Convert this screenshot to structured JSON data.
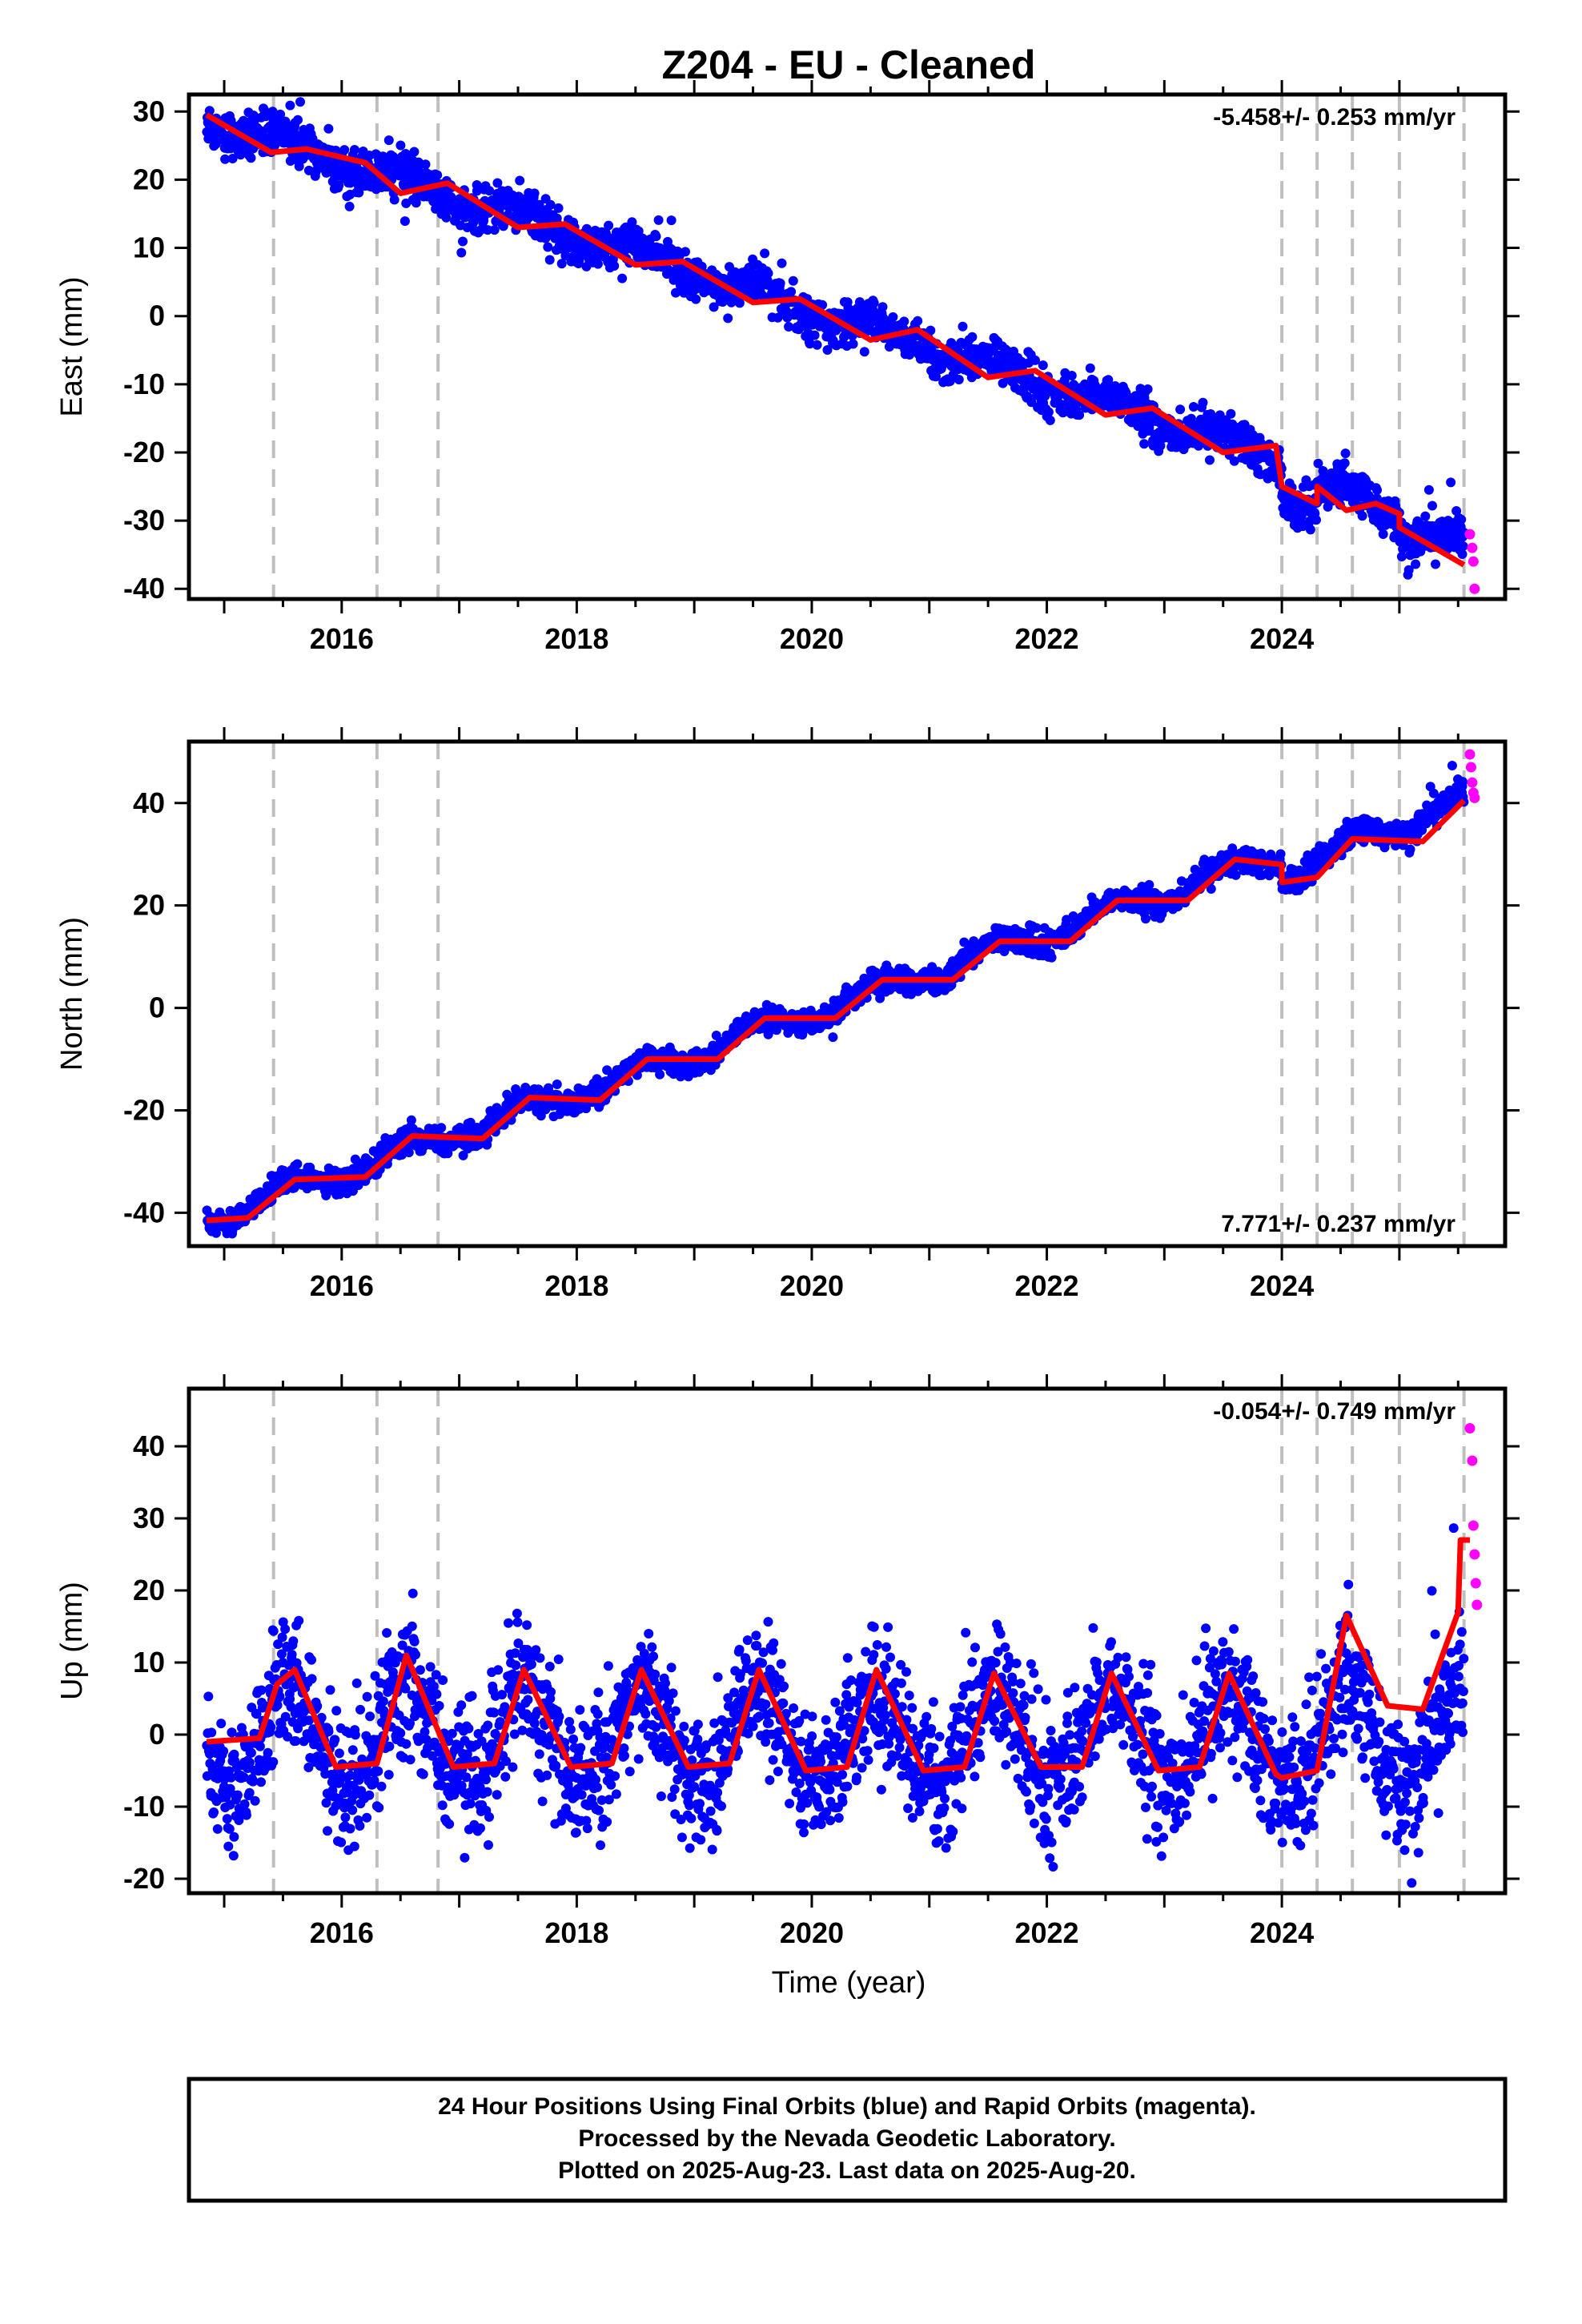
{
  "title": "Z204  - EU - Cleaned",
  "xlabel": "Time (year)",
  "footer": [
    "24 Hour Positions Using Final Orbits (blue) and Rapid Orbits (magenta).",
    "Processed by the Nevada Geodetic Laboratory.",
    "Plotted on 2025-Aug-23. Last data on 2025-Aug-20."
  ],
  "colors": {
    "final": "#0000ff",
    "rapid": "#ff00ff",
    "model": "#ff0000",
    "event_line": "#bfbfbf"
  },
  "chart_data": [
    {
      "type": "scatter",
      "component": "east",
      "ylabel": "East (mm)",
      "rate_label": "-5.458+/- 0.253 mm/yr",
      "rate_position": "top-right",
      "xlim": [
        2014.7,
        2025.9
      ],
      "ylim": [
        -41.5,
        32.5
      ],
      "x_ticks": [
        2016,
        2018,
        2020,
        2022,
        2024
      ],
      "y_ticks": [
        30,
        20,
        10,
        0,
        -10,
        -20,
        -30,
        -40
      ],
      "events": [
        2015.42,
        2016.3,
        2016.82,
        2024.0,
        2024.3,
        2024.6,
        2025.0,
        2025.55
      ],
      "trend": {
        "x0": 2014.85,
        "y0": 29.0,
        "rate": -5.458,
        "seasonal_amplitude": 1.3,
        "scatter": 1.5
      },
      "steps": [
        {
          "x": 2024.0,
          "dy": -5
        },
        {
          "x": 2024.3,
          "dy": 2.5
        },
        {
          "x": 2025.0,
          "dy": -2
        }
      ],
      "model": [
        [
          2014.85,
          29.5
        ],
        [
          2015.4,
          24.0
        ],
        [
          2015.7,
          24.5
        ],
        [
          2016.2,
          22.5
        ],
        [
          2016.5,
          18.0
        ],
        [
          2016.9,
          19.5
        ],
        [
          2017.5,
          13.0
        ],
        [
          2017.9,
          13.5
        ],
        [
          2018.5,
          7.5
        ],
        [
          2018.9,
          8.0
        ],
        [
          2019.5,
          2.0
        ],
        [
          2019.9,
          2.5
        ],
        [
          2020.5,
          -3.5
        ],
        [
          2020.9,
          -2.0
        ],
        [
          2021.5,
          -9.0
        ],
        [
          2021.9,
          -8.0
        ],
        [
          2022.5,
          -14.5
        ],
        [
          2022.9,
          -13.5
        ],
        [
          2023.5,
          -20.0
        ],
        [
          2023.95,
          -19.0
        ],
        [
          2024.0,
          -25.0
        ],
        [
          2024.3,
          -27.5
        ],
        [
          2024.3,
          -25.0
        ],
        [
          2024.55,
          -28.5
        ],
        [
          2024.8,
          -27.5
        ],
        [
          2025.0,
          -29.0
        ],
        [
          2025.0,
          -31.0
        ],
        [
          2025.55,
          -36.5
        ]
      ],
      "rapid_points": [
        [
          2025.6,
          -32
        ],
        [
          2025.62,
          -34
        ],
        [
          2025.63,
          -36
        ],
        [
          2025.64,
          -40
        ]
      ]
    },
    {
      "type": "scatter",
      "component": "north",
      "ylabel": "North (mm)",
      "rate_label": "7.771+/- 0.237 mm/yr",
      "rate_position": "bottom-right",
      "xlim": [
        2014.7,
        2025.9
      ],
      "ylim": [
        -46.5,
        52
      ],
      "x_ticks": [
        2016,
        2018,
        2020,
        2022,
        2024
      ],
      "y_ticks": [
        40,
        20,
        0,
        -20,
        -40
      ],
      "events": [
        2015.42,
        2016.3,
        2016.82,
        2024.0,
        2024.3,
        2024.6,
        2025.0,
        2025.55
      ],
      "trend": {
        "x0": 2014.85,
        "y0": -41.0,
        "rate": 7.771,
        "seasonal_amplitude": 2.0,
        "scatter": 1.2
      },
      "steps": [
        {
          "x": 2024.0,
          "dy": -4
        },
        {
          "x": 2024.3,
          "dy": 0
        },
        {
          "x": 2024.6,
          "dy": 2
        }
      ],
      "model": [
        [
          2014.85,
          -41.5
        ],
        [
          2015.2,
          -41.0
        ],
        [
          2015.6,
          -33.5
        ],
        [
          2016.2,
          -33.0
        ],
        [
          2016.6,
          -25.0
        ],
        [
          2017.2,
          -25.5
        ],
        [
          2017.6,
          -17.5
        ],
        [
          2018.2,
          -18.0
        ],
        [
          2018.6,
          -10.0
        ],
        [
          2019.2,
          -10.0
        ],
        [
          2019.6,
          -2.0
        ],
        [
          2020.2,
          -2.0
        ],
        [
          2020.6,
          5.5
        ],
        [
          2021.2,
          5.5
        ],
        [
          2021.6,
          13.0
        ],
        [
          2022.2,
          13.0
        ],
        [
          2022.6,
          21.0
        ],
        [
          2023.2,
          21.0
        ],
        [
          2023.6,
          29.0
        ],
        [
          2024.0,
          28.0
        ],
        [
          2024.0,
          24.5
        ],
        [
          2024.3,
          25.5
        ],
        [
          2024.6,
          33.0
        ],
        [
          2025.2,
          32.5
        ],
        [
          2025.55,
          40.5
        ]
      ],
      "rapid_points": [
        [
          2025.6,
          49.5
        ],
        [
          2025.61,
          47
        ],
        [
          2025.62,
          44
        ],
        [
          2025.63,
          42
        ],
        [
          2025.64,
          41
        ]
      ]
    },
    {
      "type": "scatter",
      "component": "up",
      "ylabel": "Up (mm)",
      "rate_label": "-0.054+/- 0.749 mm/yr",
      "rate_position": "top-right",
      "xlim": [
        2014.7,
        2025.9
      ],
      "ylim": [
        -22,
        48
      ],
      "x_ticks": [
        2016,
        2018,
        2020,
        2022,
        2024
      ],
      "y_ticks": [
        40,
        30,
        20,
        10,
        0,
        -10,
        -20
      ],
      "events": [
        2015.42,
        2016.3,
        2016.82,
        2024.0,
        2024.3,
        2024.6,
        2025.0,
        2025.55
      ],
      "trend": {
        "x0": 2014.85,
        "y0": 0.0,
        "rate": -0.054,
        "seasonal_amplitude": 6.5,
        "scatter": 4.5
      },
      "steps": [],
      "model": [
        [
          2014.85,
          -1.0
        ],
        [
          2015.3,
          -0.5
        ],
        [
          2015.45,
          7.0
        ],
        [
          2015.6,
          9.0
        ],
        [
          2015.95,
          -4.5
        ],
        [
          2016.3,
          -4.0
        ],
        [
          2016.55,
          11.0
        ],
        [
          2016.95,
          -4.5
        ],
        [
          2017.3,
          -4.0
        ],
        [
          2017.55,
          9.0
        ],
        [
          2017.95,
          -4.5
        ],
        [
          2018.3,
          -4.0
        ],
        [
          2018.55,
          9.0
        ],
        [
          2018.95,
          -4.5
        ],
        [
          2019.3,
          -4.0
        ],
        [
          2019.55,
          9.0
        ],
        [
          2019.95,
          -5.0
        ],
        [
          2020.3,
          -4.5
        ],
        [
          2020.55,
          9.0
        ],
        [
          2020.95,
          -5.0
        ],
        [
          2021.3,
          -4.5
        ],
        [
          2021.55,
          8.5
        ],
        [
          2021.95,
          -4.5
        ],
        [
          2022.3,
          -4.5
        ],
        [
          2022.55,
          8.5
        ],
        [
          2022.95,
          -5.0
        ],
        [
          2023.3,
          -4.5
        ],
        [
          2023.55,
          8.5
        ],
        [
          2023.95,
          -5.5
        ],
        [
          2024.0,
          -6.0
        ],
        [
          2024.3,
          -5.0
        ],
        [
          2024.55,
          16.5
        ],
        [
          2024.9,
          4.0
        ],
        [
          2025.2,
          3.5
        ],
        [
          2025.5,
          17.0
        ],
        [
          2025.52,
          27.0
        ],
        [
          2025.6,
          27.0
        ]
      ],
      "rapid_points": [
        [
          2025.6,
          42.5
        ],
        [
          2025.62,
          38
        ],
        [
          2025.63,
          29
        ],
        [
          2025.64,
          25
        ],
        [
          2025.65,
          21
        ],
        [
          2025.66,
          18
        ]
      ]
    }
  ]
}
